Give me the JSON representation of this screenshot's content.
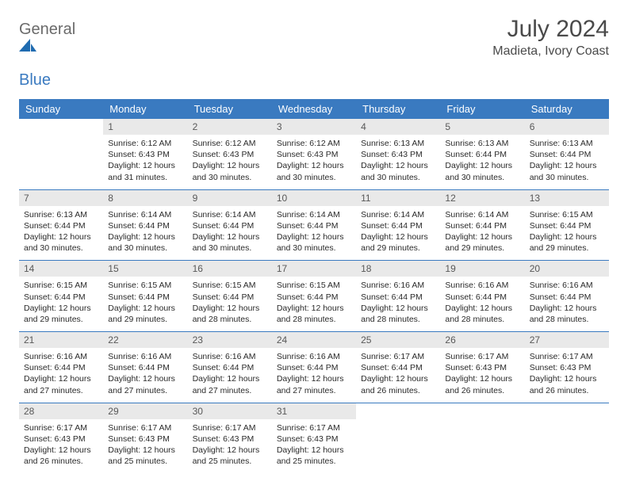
{
  "logo": {
    "general": "General",
    "blue": "Blue"
  },
  "title": "July 2024",
  "subtitle": "Madieta, Ivory Coast",
  "colors": {
    "header_bg": "#3a7ac0",
    "header_text": "#ffffff",
    "daynum_bg": "#e9e9e9",
    "daynum_text": "#585858",
    "body_text": "#2a2a2a",
    "rule": "#3a7ac0",
    "page_bg": "#ffffff"
  },
  "weekdays": [
    "Sunday",
    "Monday",
    "Tuesday",
    "Wednesday",
    "Thursday",
    "Friday",
    "Saturday"
  ],
  "weeks": [
    [
      {
        "num": "",
        "sunrise": "",
        "sunset": "",
        "daylight": ""
      },
      {
        "num": "1",
        "sunrise": "Sunrise: 6:12 AM",
        "sunset": "Sunset: 6:43 PM",
        "daylight": "Daylight: 12 hours and 31 minutes."
      },
      {
        "num": "2",
        "sunrise": "Sunrise: 6:12 AM",
        "sunset": "Sunset: 6:43 PM",
        "daylight": "Daylight: 12 hours and 30 minutes."
      },
      {
        "num": "3",
        "sunrise": "Sunrise: 6:12 AM",
        "sunset": "Sunset: 6:43 PM",
        "daylight": "Daylight: 12 hours and 30 minutes."
      },
      {
        "num": "4",
        "sunrise": "Sunrise: 6:13 AM",
        "sunset": "Sunset: 6:43 PM",
        "daylight": "Daylight: 12 hours and 30 minutes."
      },
      {
        "num": "5",
        "sunrise": "Sunrise: 6:13 AM",
        "sunset": "Sunset: 6:44 PM",
        "daylight": "Daylight: 12 hours and 30 minutes."
      },
      {
        "num": "6",
        "sunrise": "Sunrise: 6:13 AM",
        "sunset": "Sunset: 6:44 PM",
        "daylight": "Daylight: 12 hours and 30 minutes."
      }
    ],
    [
      {
        "num": "7",
        "sunrise": "Sunrise: 6:13 AM",
        "sunset": "Sunset: 6:44 PM",
        "daylight": "Daylight: 12 hours and 30 minutes."
      },
      {
        "num": "8",
        "sunrise": "Sunrise: 6:14 AM",
        "sunset": "Sunset: 6:44 PM",
        "daylight": "Daylight: 12 hours and 30 minutes."
      },
      {
        "num": "9",
        "sunrise": "Sunrise: 6:14 AM",
        "sunset": "Sunset: 6:44 PM",
        "daylight": "Daylight: 12 hours and 30 minutes."
      },
      {
        "num": "10",
        "sunrise": "Sunrise: 6:14 AM",
        "sunset": "Sunset: 6:44 PM",
        "daylight": "Daylight: 12 hours and 30 minutes."
      },
      {
        "num": "11",
        "sunrise": "Sunrise: 6:14 AM",
        "sunset": "Sunset: 6:44 PM",
        "daylight": "Daylight: 12 hours and 29 minutes."
      },
      {
        "num": "12",
        "sunrise": "Sunrise: 6:14 AM",
        "sunset": "Sunset: 6:44 PM",
        "daylight": "Daylight: 12 hours and 29 minutes."
      },
      {
        "num": "13",
        "sunrise": "Sunrise: 6:15 AM",
        "sunset": "Sunset: 6:44 PM",
        "daylight": "Daylight: 12 hours and 29 minutes."
      }
    ],
    [
      {
        "num": "14",
        "sunrise": "Sunrise: 6:15 AM",
        "sunset": "Sunset: 6:44 PM",
        "daylight": "Daylight: 12 hours and 29 minutes."
      },
      {
        "num": "15",
        "sunrise": "Sunrise: 6:15 AM",
        "sunset": "Sunset: 6:44 PM",
        "daylight": "Daylight: 12 hours and 29 minutes."
      },
      {
        "num": "16",
        "sunrise": "Sunrise: 6:15 AM",
        "sunset": "Sunset: 6:44 PM",
        "daylight": "Daylight: 12 hours and 28 minutes."
      },
      {
        "num": "17",
        "sunrise": "Sunrise: 6:15 AM",
        "sunset": "Sunset: 6:44 PM",
        "daylight": "Daylight: 12 hours and 28 minutes."
      },
      {
        "num": "18",
        "sunrise": "Sunrise: 6:16 AM",
        "sunset": "Sunset: 6:44 PM",
        "daylight": "Daylight: 12 hours and 28 minutes."
      },
      {
        "num": "19",
        "sunrise": "Sunrise: 6:16 AM",
        "sunset": "Sunset: 6:44 PM",
        "daylight": "Daylight: 12 hours and 28 minutes."
      },
      {
        "num": "20",
        "sunrise": "Sunrise: 6:16 AM",
        "sunset": "Sunset: 6:44 PM",
        "daylight": "Daylight: 12 hours and 28 minutes."
      }
    ],
    [
      {
        "num": "21",
        "sunrise": "Sunrise: 6:16 AM",
        "sunset": "Sunset: 6:44 PM",
        "daylight": "Daylight: 12 hours and 27 minutes."
      },
      {
        "num": "22",
        "sunrise": "Sunrise: 6:16 AM",
        "sunset": "Sunset: 6:44 PM",
        "daylight": "Daylight: 12 hours and 27 minutes."
      },
      {
        "num": "23",
        "sunrise": "Sunrise: 6:16 AM",
        "sunset": "Sunset: 6:44 PM",
        "daylight": "Daylight: 12 hours and 27 minutes."
      },
      {
        "num": "24",
        "sunrise": "Sunrise: 6:16 AM",
        "sunset": "Sunset: 6:44 PM",
        "daylight": "Daylight: 12 hours and 27 minutes."
      },
      {
        "num": "25",
        "sunrise": "Sunrise: 6:17 AM",
        "sunset": "Sunset: 6:44 PM",
        "daylight": "Daylight: 12 hours and 26 minutes."
      },
      {
        "num": "26",
        "sunrise": "Sunrise: 6:17 AM",
        "sunset": "Sunset: 6:43 PM",
        "daylight": "Daylight: 12 hours and 26 minutes."
      },
      {
        "num": "27",
        "sunrise": "Sunrise: 6:17 AM",
        "sunset": "Sunset: 6:43 PM",
        "daylight": "Daylight: 12 hours and 26 minutes."
      }
    ],
    [
      {
        "num": "28",
        "sunrise": "Sunrise: 6:17 AM",
        "sunset": "Sunset: 6:43 PM",
        "daylight": "Daylight: 12 hours and 26 minutes."
      },
      {
        "num": "29",
        "sunrise": "Sunrise: 6:17 AM",
        "sunset": "Sunset: 6:43 PM",
        "daylight": "Daylight: 12 hours and 25 minutes."
      },
      {
        "num": "30",
        "sunrise": "Sunrise: 6:17 AM",
        "sunset": "Sunset: 6:43 PM",
        "daylight": "Daylight: 12 hours and 25 minutes."
      },
      {
        "num": "31",
        "sunrise": "Sunrise: 6:17 AM",
        "sunset": "Sunset: 6:43 PM",
        "daylight": "Daylight: 12 hours and 25 minutes."
      },
      {
        "num": "",
        "sunrise": "",
        "sunset": "",
        "daylight": ""
      },
      {
        "num": "",
        "sunrise": "",
        "sunset": "",
        "daylight": ""
      },
      {
        "num": "",
        "sunrise": "",
        "sunset": "",
        "daylight": ""
      }
    ]
  ]
}
